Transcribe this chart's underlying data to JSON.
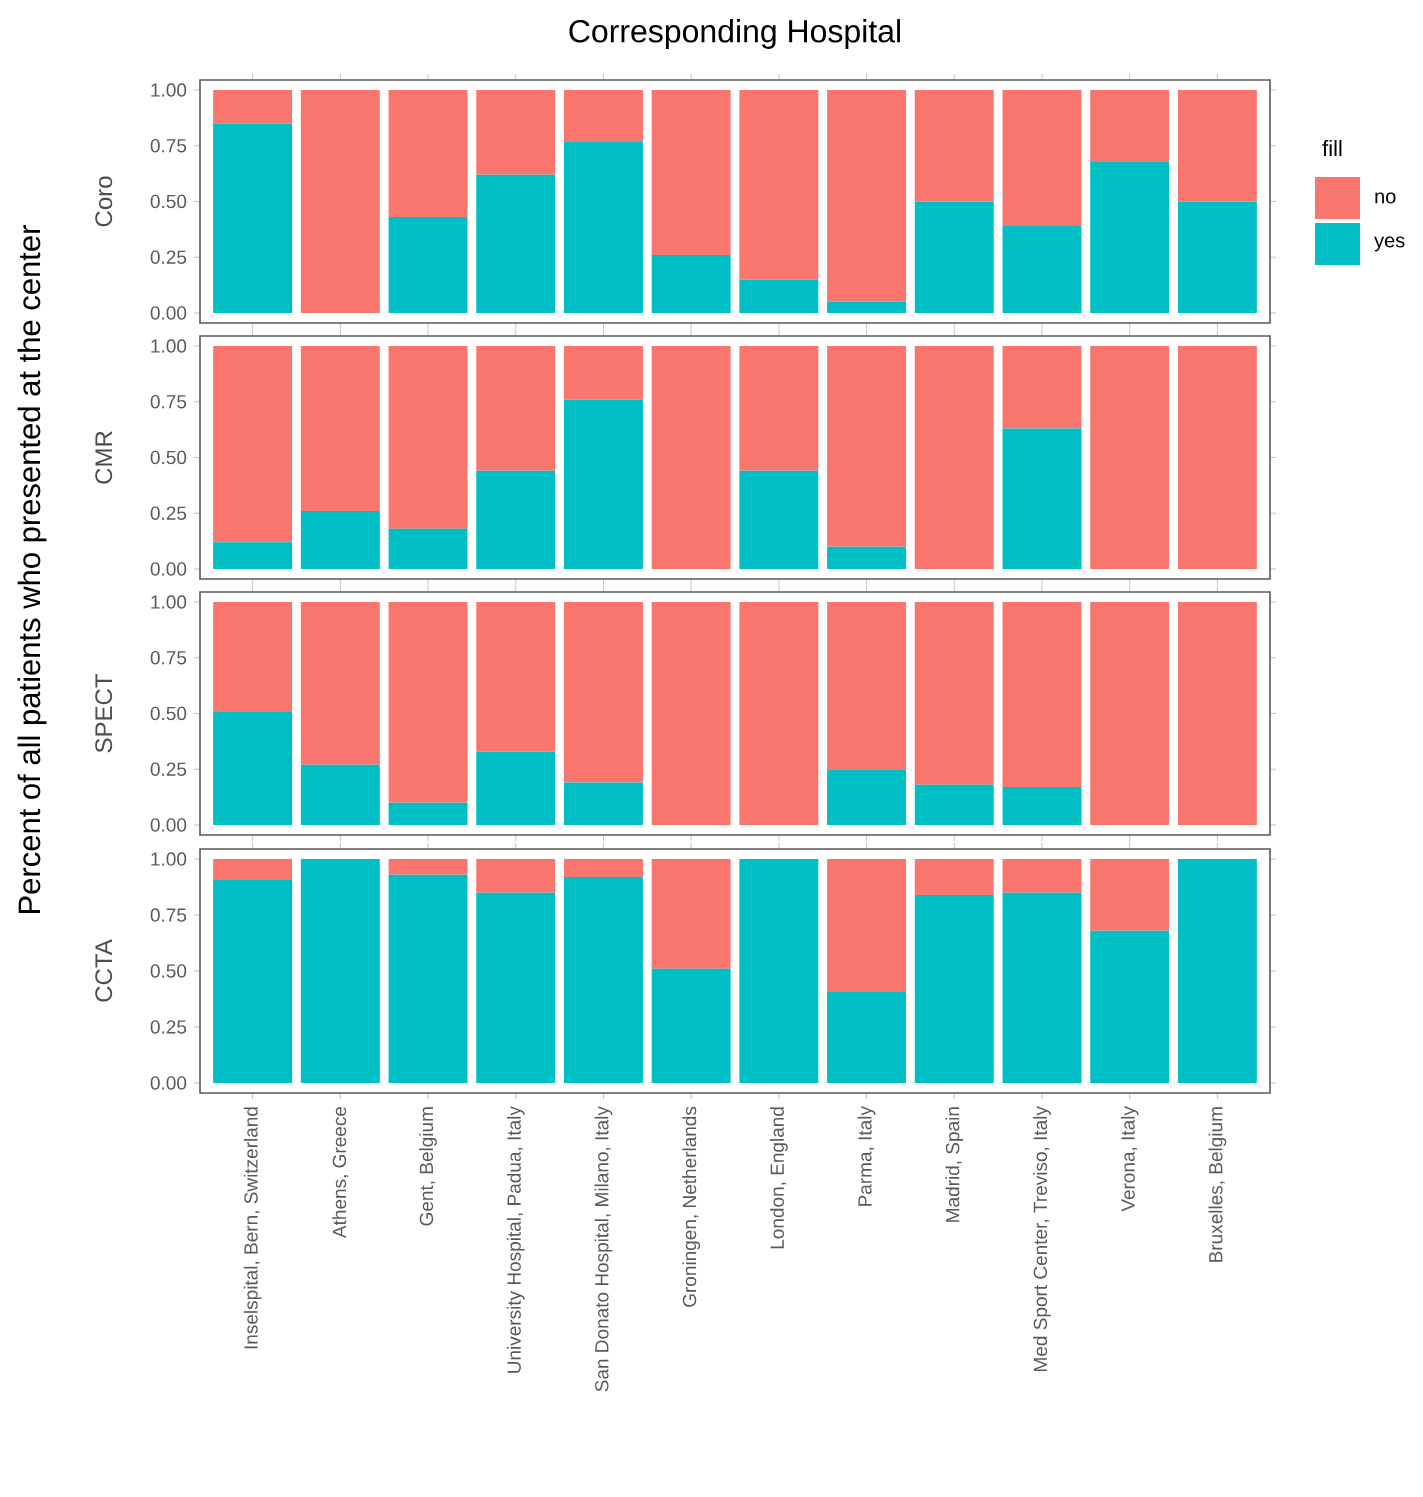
{
  "chart_data": [
    {
      "type": "bar",
      "stacked": true,
      "title": "Corresponding Hospital",
      "ylabel": "Coro",
      "legend_title": "fill",
      "legend": "right",
      "tick_labels": "y",
      "annotations": [
        "Percent of all patients who presented at the center"
      ],
      "categories": [
        null,
        null,
        null,
        null,
        null,
        null,
        null,
        null,
        null,
        null,
        null,
        null
      ],
      "ylim": [
        -0.045,
        1.045
      ],
      "yticks": [
        {
          "value": 0,
          "label": "0.00"
        },
        {
          "value": 0.25,
          "label": "0.25"
        },
        {
          "value": 0.5,
          "label": "0.50"
        },
        {
          "value": 0.75,
          "label": "0.75"
        },
        {
          "value": 1,
          "label": "1.00"
        }
      ],
      "series": [
        {
          "name": "yes",
          "color": "#00bfc4",
          "values": [
            0.85,
            0,
            0.43,
            0.62,
            0.77,
            0.26,
            0.15,
            0.05,
            0.5,
            0.39,
            0.68,
            0.5
          ]
        },
        {
          "name": "no",
          "color": "#f8766d",
          "values": [
            0.15,
            1,
            0.57,
            0.38,
            0.23,
            0.74,
            0.85,
            0.95,
            0.5,
            0.61,
            0.32,
            0.5
          ]
        }
      ]
    },
    {
      "type": "bar",
      "stacked": true,
      "ylabel": "CMR",
      "tick_labels": "y",
      "categories": [
        null,
        null,
        null,
        null,
        null,
        null,
        null,
        null,
        null,
        null,
        null,
        null
      ],
      "ylim": [
        -0.045,
        1.045
      ],
      "yticks": [
        {
          "value": 0,
          "label": "0.00"
        },
        {
          "value": 0.25,
          "label": "0.25"
        },
        {
          "value": 0.5,
          "label": "0.50"
        },
        {
          "value": 0.75,
          "label": "0.75"
        },
        {
          "value": 1,
          "label": "1.00"
        }
      ],
      "series": [
        {
          "color": "#00bfc4",
          "values": [
            0.12,
            0.26,
            0.18,
            0.44,
            0.76,
            0,
            0.44,
            0.1,
            0,
            0.63,
            0,
            0
          ]
        },
        {
          "color": "#f8766d",
          "values": [
            0.88,
            0.74,
            0.82,
            0.56,
            0.24,
            1,
            0.56,
            0.9,
            1,
            0.37,
            1,
            1
          ]
        }
      ]
    },
    {
      "type": "bar",
      "stacked": true,
      "ylabel": "SPECT",
      "tick_labels": "y",
      "categories": [
        null,
        null,
        null,
        null,
        null,
        null,
        null,
        null,
        null,
        null,
        null,
        null
      ],
      "ylim": [
        -0.045,
        1.045
      ],
      "yticks": [
        {
          "value": 0,
          "label": "0.00"
        },
        {
          "value": 0.25,
          "label": "0.25"
        },
        {
          "value": 0.5,
          "label": "0.50"
        },
        {
          "value": 0.75,
          "label": "0.75"
        },
        {
          "value": 1,
          "label": "1.00"
        }
      ],
      "series": [
        {
          "color": "#00bfc4",
          "values": [
            0.51,
            0.27,
            0.1,
            0.33,
            0.19,
            0,
            0,
            0.25,
            0.18,
            0.17,
            0,
            0
          ]
        },
        {
          "color": "#f8766d",
          "values": [
            0.49,
            0.73,
            0.9,
            0.67,
            0.81,
            1,
            1,
            0.75,
            0.82,
            0.83,
            1,
            1
          ]
        }
      ]
    },
    {
      "type": "bar",
      "stacked": true,
      "ylabel": "CCTA",
      "categories": [
        "Inselspital, Bern, Switzerland",
        "Athens, Greece",
        "Gent, Belgium",
        "University Hospital, Padua, Italy",
        "San Donato Hospital, Milano, Italy",
        "Groningen, Netherlands",
        "London, England",
        "Parma, Italy",
        "Madrid, Spain",
        "Med Sport Center, Treviso, Italy",
        "Verona, Italy",
        "Bruxelles, Belgium"
      ],
      "ylim": [
        -0.045,
        1.045
      ],
      "yticks": [
        {
          "value": 0,
          "label": "0.00"
        },
        {
          "value": 0.25,
          "label": "0.25"
        },
        {
          "value": 0.5,
          "label": "0.50"
        },
        {
          "value": 0.75,
          "label": "0.75"
        },
        {
          "value": 1,
          "label": "1.00"
        }
      ],
      "series": [
        {
          "color": "#00bfc4",
          "values": [
            0.91,
            1,
            0.93,
            0.85,
            0.92,
            0.51,
            1,
            0.41,
            0.84,
            0.85,
            0.68,
            1
          ]
        },
        {
          "color": "#f8766d",
          "values": [
            0.09,
            0,
            0.07,
            0.15,
            0.08,
            0.49,
            0,
            0.59,
            0.16,
            0.15,
            0.32,
            0
          ]
        }
      ]
    }
  ]
}
